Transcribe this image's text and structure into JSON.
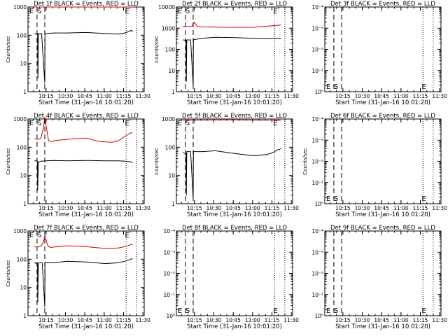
{
  "chart_data": [
    {
      "type": "line",
      "title": "Det 1f BLACK = Events, RED = LLD",
      "xlabel": "Start Time (31-Jan-16 10:01:20)",
      "ylabel": "Counts/sec",
      "yscale": "log",
      "ylim": [
        1,
        1000
      ],
      "y_tick_labels": [
        "1000",
        "100",
        "10",
        "1"
      ],
      "x_tick_labels": [
        "10:15",
        "10:30",
        "10:45",
        "11:00",
        "11:15",
        "11:30"
      ],
      "markers": [
        "E",
        "S",
        "E"
      ],
      "series": [
        {
          "color": "#000000",
          "x": [
            5,
            7,
            7.5,
            7.7,
            8,
            10,
            10.5,
            13,
            13.2,
            14,
            20,
            30,
            45,
            60,
            70,
            75,
            78,
            80,
            81
          ],
          "y": [
            110,
            115,
            115,
            3,
            110,
            115,
            115,
            2,
            115,
            115,
            120,
            120,
            125,
            115,
            110,
            120,
            135,
            150,
            130
          ]
        },
        {
          "color": "#cc0000",
          "x": [
            5,
            20,
            40,
            60,
            81
          ],
          "y": [
            1000,
            1000,
            1000,
            1000,
            1000
          ]
        }
      ]
    },
    {
      "type": "line",
      "title": "Det 2f BLACK = Events, RED = LLD",
      "xlabel": "Start Time (31-Jan-16 10:01:20)",
      "ylabel": "Counts/sec",
      "yscale": "log",
      "ylim": [
        1,
        10000
      ],
      "y_tick_labels": [
        "10000",
        "1000",
        "100",
        "10",
        "1"
      ],
      "x_tick_labels": [
        "10:15",
        "10:30",
        "10:45",
        "11:00",
        "11:15",
        "11:30"
      ],
      "markers": [
        "E",
        "S",
        "E"
      ],
      "series": [
        {
          "color": "#000000",
          "x": [
            5,
            7,
            7.5,
            7.7,
            8,
            10,
            11,
            13,
            13.2,
            14,
            20,
            30,
            45,
            60,
            70,
            75,
            80,
            81
          ],
          "y": [
            280,
            270,
            270,
            3,
            280,
            280,
            280,
            2,
            280,
            290,
            330,
            370,
            360,
            330,
            320,
            330,
            330,
            310
          ]
        },
        {
          "color": "#cc0000",
          "x": [
            5,
            10,
            12,
            14,
            16,
            20,
            40,
            60,
            81
          ],
          "y": [
            1200,
            1200,
            1250,
            1900,
            1200,
            1150,
            1100,
            1100,
            1400
          ]
        }
      ]
    },
    {
      "type": "line",
      "title": "Det 3f BLACK = Events, RED = LLD",
      "xlabel": "Start Time (31-Jan-16 10:01:20)",
      "ylabel": "",
      "yscale": "log",
      "ylim": [
        1,
        0.0001
      ],
      "y_tick_labels": [
        "10⁻⁴",
        "10⁻³",
        "10⁻²",
        "10⁻¹",
        "10⁰"
      ],
      "x_tick_labels": [
        "10:15",
        "10:30",
        "10:45",
        "11:00",
        "11:15",
        "11:30"
      ],
      "markers": [
        "E",
        "S",
        "E"
      ],
      "series": []
    },
    {
      "type": "line",
      "title": "Det 4f BLACK = Events, RED = LLD",
      "xlabel": "Start Time (31-Jan-16 10:01:20)",
      "ylabel": "Counts/sec",
      "yscale": "log",
      "ylim": [
        1,
        1000
      ],
      "y_tick_labels": [
        "1000",
        "100",
        "10",
        "1"
      ],
      "x_tick_labels": [
        "10:15",
        "10:30",
        "10:45",
        "11:00",
        "11:15",
        "11:30"
      ],
      "markers": [
        "E",
        "S",
        "E"
      ],
      "series": [
        {
          "color": "#000000",
          "x": [
            5,
            7,
            7.3,
            7.5,
            8,
            10,
            11,
            14,
            20,
            30,
            45,
            60,
            70,
            75,
            80,
            81
          ],
          "y": [
            32,
            35,
            30,
            3,
            30,
            32,
            32,
            33,
            34,
            33,
            34,
            33,
            33,
            32,
            30,
            28
          ]
        },
        {
          "color": "#cc0000",
          "x": [
            5,
            8,
            10,
            12,
            13,
            14,
            15,
            16,
            18,
            20,
            30,
            45,
            55,
            65,
            70,
            75,
            80,
            81
          ],
          "y": [
            200,
            190,
            210,
            500,
            1200,
            600,
            300,
            170,
            160,
            170,
            190,
            210,
            160,
            150,
            170,
            240,
            330,
            310
          ]
        }
      ]
    },
    {
      "type": "line",
      "title": "Det 5f BLACK = Events, RED = LLD",
      "xlabel": "Start Time (31-Jan-16 10:01:20)",
      "ylabel": "Counts/sec",
      "yscale": "log",
      "ylim": [
        1,
        1000
      ],
      "y_tick_labels": [
        "1000",
        "100",
        "10",
        "1"
      ],
      "x_tick_labels": [
        "10:15",
        "10:30",
        "10:45",
        "11:00",
        "11:15",
        "11:30"
      ],
      "markers": [
        "E",
        "S",
        "E"
      ],
      "series": [
        {
          "color": "#000000",
          "x": [
            5,
            7,
            7.5,
            7.7,
            8,
            10,
            11,
            13,
            13.2,
            14,
            20,
            30,
            45,
            60,
            70,
            75,
            78,
            80,
            81
          ],
          "y": [
            65,
            60,
            60,
            2,
            70,
            70,
            70,
            1.5,
            70,
            70,
            70,
            75,
            60,
            50,
            55,
            65,
            80,
            85,
            90
          ]
        },
        {
          "color": "#cc0000",
          "x": [
            5,
            20,
            40,
            60,
            81
          ],
          "y": [
            900,
            920,
            930,
            920,
            900
          ]
        }
      ]
    },
    {
      "type": "line",
      "title": "Det 6f BLACK = Events, RED = LLD",
      "xlabel": "Start Time (31-Jan-16 10:01:20)",
      "ylabel": "Counts/sec",
      "yscale": "log",
      "ylim": [
        1,
        0.0001
      ],
      "y_tick_labels": [
        "10⁻⁴",
        "10⁻³",
        "10⁻²",
        "10⁻¹",
        "10⁰"
      ],
      "x_tick_labels": [
        "10:15",
        "10:30",
        "10:45",
        "11:00",
        "11:15",
        "11:30"
      ],
      "markers": [
        "E",
        "S",
        "E"
      ],
      "series": []
    },
    {
      "type": "line",
      "title": "Det 7f BLACK = Events, RED = LLD",
      "xlabel": "Start Time (31-Jan-16 10:01:20)",
      "ylabel": "Counts/sec",
      "yscale": "log",
      "ylim": [
        1,
        1000
      ],
      "y_tick_labels": [
        "1000",
        "100",
        "10",
        "1"
      ],
      "x_tick_labels": [
        "10:15",
        "10:30",
        "10:45",
        "11:00",
        "11:15",
        "11:30"
      ],
      "markers": [
        "E",
        "S",
        "E"
      ],
      "series": [
        {
          "color": "#000000",
          "x": [
            5,
            7,
            7.4,
            7.6,
            8,
            10,
            11,
            13,
            13.2,
            14,
            20,
            30,
            45,
            60,
            70,
            75,
            80,
            81
          ],
          "y": [
            75,
            70,
            70,
            3,
            75,
            75,
            75,
            2,
            75,
            75,
            75,
            85,
            80,
            70,
            75,
            85,
            100,
            110
          ]
        },
        {
          "color": "#cc0000",
          "x": [
            5,
            8,
            10,
            12,
            13,
            14,
            15,
            16,
            18,
            20,
            30,
            45,
            60,
            70,
            75,
            80,
            81
          ],
          "y": [
            280,
            270,
            290,
            400,
            700,
            500,
            330,
            280,
            260,
            270,
            300,
            280,
            240,
            250,
            280,
            330,
            340
          ]
        }
      ]
    },
    {
      "type": "line",
      "title": "Det 8f BLACK = Events, RED = LLD",
      "xlabel": "Start Time (31-Jan-16 10:01:20)",
      "ylabel": "",
      "yscale": "log",
      "ylim": [
        1,
        0.0001
      ],
      "y_tick_labels": [
        "10⁻⁴",
        "10⁻³",
        "10⁻²",
        "10⁻¹",
        "10⁰"
      ],
      "x_tick_labels": [
        "10:15",
        "10:30",
        "10:45",
        "11:00",
        "11:15",
        "11:30"
      ],
      "markers": [
        "E",
        "S",
        "E"
      ],
      "series": []
    },
    {
      "type": "line",
      "title": "Det 9f BLACK = Events, RED = LLD",
      "xlabel": "Start Time (31-Jan-16 10:01:20)",
      "ylabel": "",
      "yscale": "log",
      "ylim": [
        1,
        0.0001
      ],
      "y_tick_labels": [
        "10⁻⁴",
        "10⁻³",
        "10⁻²",
        "10⁻¹",
        "10⁰"
      ],
      "x_tick_labels": [
        "10:15",
        "10:30",
        "10:45",
        "11:00",
        "11:15",
        "11:30"
      ],
      "markers": [
        "E",
        "S",
        "E"
      ],
      "series": []
    }
  ]
}
